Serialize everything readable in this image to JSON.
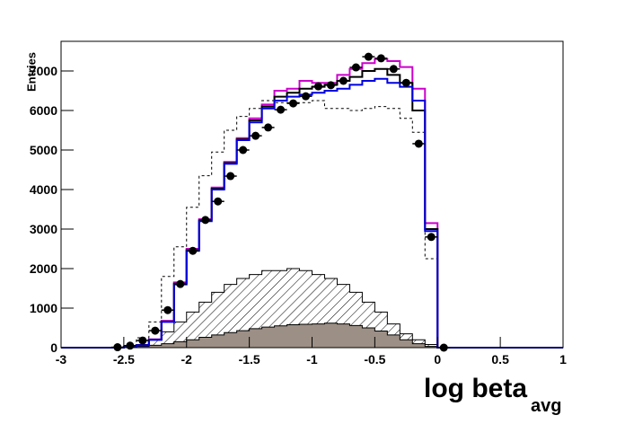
{
  "chart_data": {
    "type": "histogram",
    "x_label": "log beta",
    "x_label_sub": "avg",
    "y_label": "Entries",
    "xlim": [
      -3,
      1
    ],
    "ylim": [
      0,
      7750
    ],
    "xticks": [
      -3,
      -2.5,
      -2,
      -1.5,
      -1,
      -0.5,
      0,
      0.5,
      1
    ],
    "yticks": [
      0,
      1000,
      2000,
      3000,
      4000,
      5000,
      6000,
      7000
    ],
    "bins": [
      -2.6,
      -2.5,
      -2.4,
      -2.3,
      -2.2,
      -2.1,
      -2.0,
      -1.9,
      -1.8,
      -1.7,
      -1.6,
      -1.5,
      -1.4,
      -1.3,
      -1.2,
      -1.1,
      -1.0,
      -0.9,
      -0.8,
      -0.7,
      -0.6,
      -0.5,
      -0.4,
      -0.3,
      -0.2,
      -0.1,
      0.0,
      0.1
    ],
    "series": [
      {
        "color": "#000000",
        "hatch": true,
        "values": [
          0,
          20,
          80,
          200,
          400,
          650,
          900,
          1150,
          1400,
          1600,
          1750,
          1850,
          1950,
          1950,
          2000,
          1950,
          1850,
          1750,
          1600,
          1400,
          1150,
          900,
          600,
          350,
          200,
          80,
          0
        ]
      },
      {
        "color": "#000000",
        "fill": "#9c8f85",
        "values": [
          0,
          10,
          30,
          60,
          100,
          150,
          200,
          260,
          320,
          380,
          430,
          480,
          520,
          550,
          580,
          590,
          600,
          620,
          600,
          560,
          500,
          420,
          320,
          200,
          100,
          30,
          0
        ]
      },
      {
        "color": "#000000",
        "dashed": true,
        "values": [
          0,
          50,
          250,
          650,
          1800,
          2550,
          3550,
          4350,
          4950,
          5500,
          5850,
          6050,
          6250,
          6200,
          6200,
          6200,
          6250,
          6050,
          6050,
          6000,
          6050,
          6100,
          6050,
          5800,
          5450,
          2250,
          0
        ]
      },
      {
        "color": "#cc00cc",
        "values": [
          0,
          20,
          60,
          210,
          680,
          1650,
          2500,
          3250,
          4050,
          4700,
          5300,
          5800,
          6150,
          6500,
          6550,
          6750,
          6700,
          6700,
          6900,
          7050,
          7200,
          7300,
          7250,
          7100,
          6550,
          3150,
          0
        ]
      },
      {
        "color": "#000000",
        "values": [
          0,
          20,
          60,
          200,
          660,
          1620,
          2470,
          3220,
          4020,
          4670,
          5270,
          5750,
          6100,
          6350,
          6450,
          6550,
          6600,
          6650,
          6750,
          6850,
          7000,
          7050,
          6900,
          6700,
          6000,
          3000,
          0
        ]
      },
      {
        "color": "#0000dd",
        "values": [
          0,
          20,
          60,
          200,
          650,
          1600,
          2450,
          3200,
          4000,
          4650,
          5250,
          5700,
          6050,
          6250,
          6350,
          6400,
          6450,
          6500,
          6550,
          6650,
          6750,
          6800,
          6700,
          6600,
          6250,
          2950,
          0
        ]
      }
    ],
    "points": {
      "x": [
        -2.55,
        -2.45,
        -2.35,
        -2.25,
        -2.15,
        -2.05,
        -1.95,
        -1.85,
        -1.75,
        -1.65,
        -1.55,
        -1.45,
        -1.35,
        -1.25,
        -1.15,
        -1.05,
        -0.95,
        -0.85,
        -0.75,
        -0.65,
        -0.55,
        -0.45,
        -0.35,
        -0.25,
        -0.15,
        -0.05,
        0.05
      ],
      "values": [
        10,
        50,
        180,
        430,
        950,
        1610,
        2450,
        3230,
        3700,
        4340,
        5000,
        5360,
        5570,
        6020,
        6180,
        6360,
        6610,
        6640,
        6750,
        7090,
        7360,
        7320,
        7050,
        6700,
        5160,
        2800,
        0
      ]
    }
  }
}
